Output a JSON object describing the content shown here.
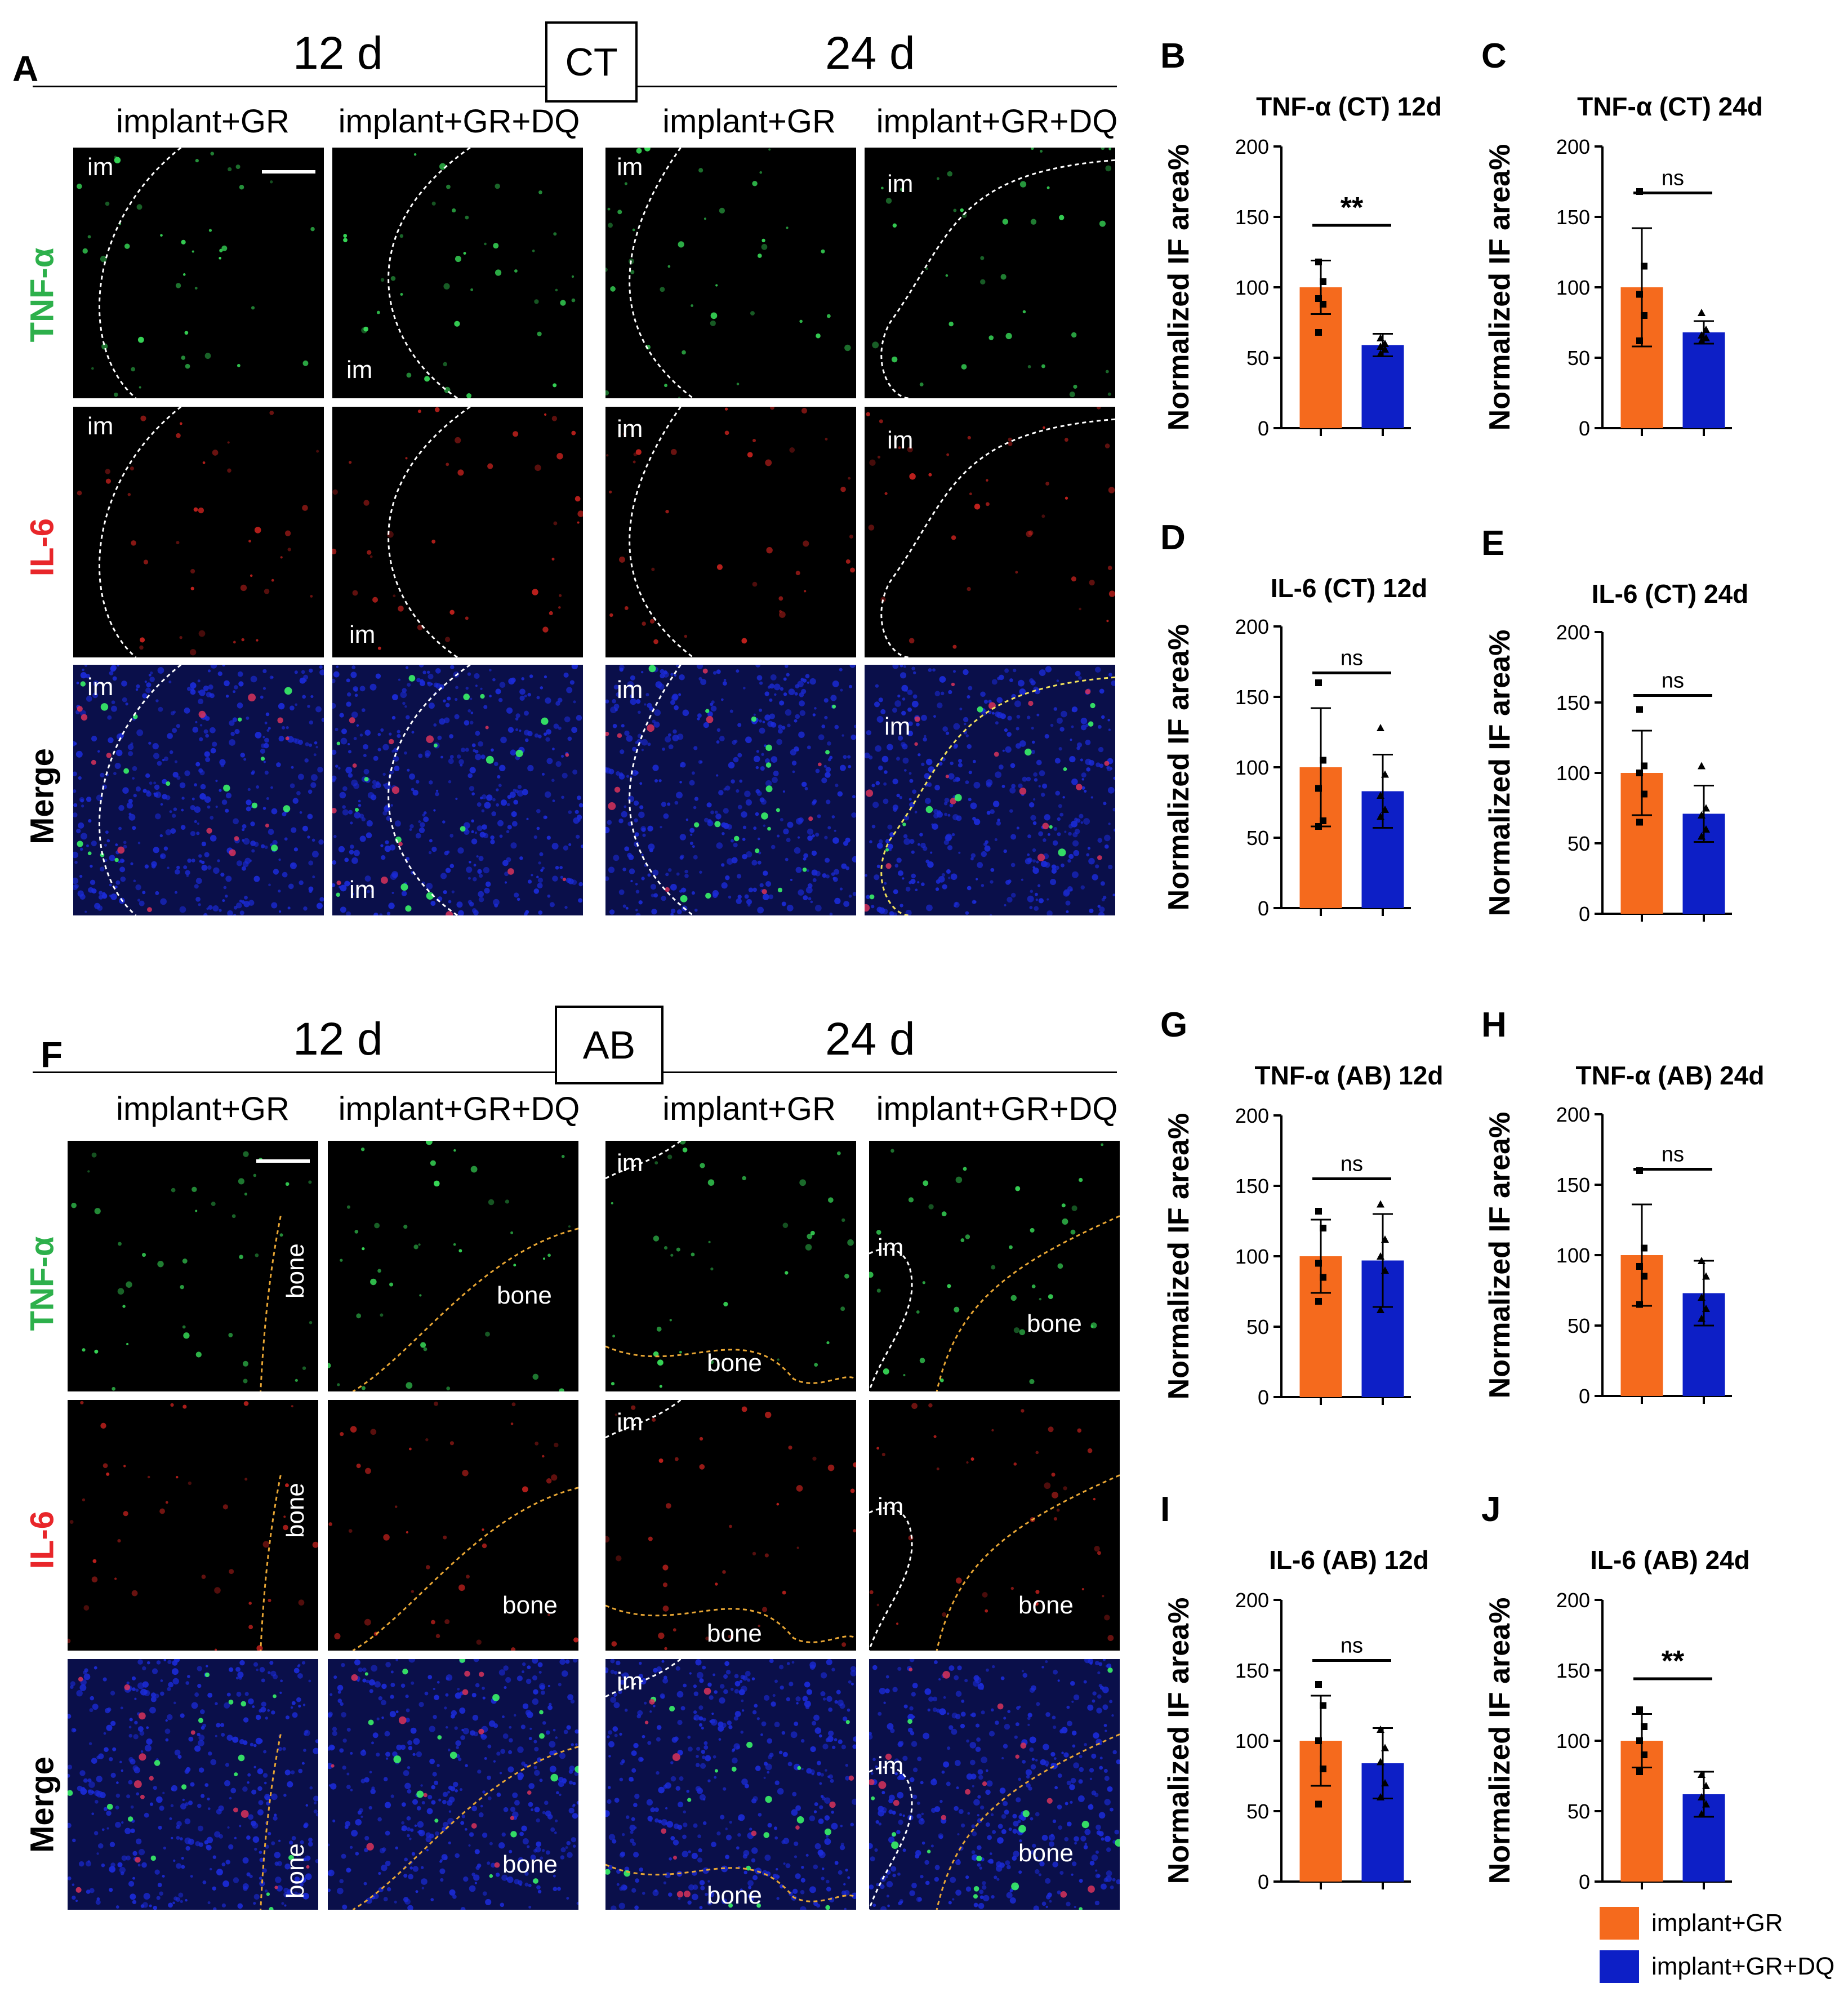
{
  "section_ct": {
    "letter": "A",
    "box_label": "CT",
    "day_left": "12 d",
    "day_right": "24 d"
  },
  "section_ab": {
    "letter": "F",
    "box_label": "AB",
    "day_left": "12 d",
    "day_right": "24 d"
  },
  "column_headers": [
    "implant+GR",
    "implant+GR+DQ",
    "implant+GR",
    "implant+GR+DQ"
  ],
  "rows": {
    "tnf": {
      "label": "TNF-α",
      "color": "#2db04b"
    },
    "il6": {
      "label": "IL-6",
      "color": "#e8262a"
    },
    "merge": {
      "label": "Merge",
      "color": "#000000"
    }
  },
  "ct_panels": {
    "labels": [
      [
        "im",
        "im",
        "im",
        "im"
      ],
      [
        "im",
        "im",
        "im",
        "im"
      ],
      [
        "im",
        "im",
        "im",
        "im"
      ]
    ]
  },
  "ab_panels": {
    "labels": [
      [
        "bone",
        "bone",
        "im",
        "im",
        "bone",
        "bone",
        "im",
        "bone"
      ],
      [
        "bone",
        "bone",
        "im",
        "im",
        "bone",
        "bone"
      ],
      [
        "bone",
        "bone",
        "im",
        "bone",
        "im",
        "bone"
      ]
    ]
  },
  "legend": [
    {
      "label": "implant+GR",
      "color": "#f56a1d"
    },
    {
      "label": "implant+GR+DQ",
      "color": "#0d1fc6"
    }
  ],
  "chart_data": [
    {
      "letter": "B",
      "type": "bar",
      "title": "TNF-α (CT) 12d",
      "ylabel": "Normalized IF area%",
      "ylim": [
        0,
        200
      ],
      "yticks": [
        0,
        50,
        100,
        150,
        200
      ],
      "categories": [
        "implant+GR",
        "implant+GR+DQ"
      ],
      "values": [
        100,
        59
      ],
      "errors": [
        19,
        8
      ],
      "sig": "**",
      "points": [
        [
          118,
          104,
          92,
          88,
          68
        ],
        [
          64,
          60,
          58,
          56,
          53
        ]
      ]
    },
    {
      "letter": "C",
      "type": "bar",
      "title": "TNF-α (CT) 24d",
      "ylabel": "Normalized IF area%",
      "ylim": [
        0,
        200
      ],
      "yticks": [
        0,
        50,
        100,
        150,
        200
      ],
      "categories": [
        "implant+GR",
        "implant+GR+DQ"
      ],
      "values": [
        100,
        68
      ],
      "errors": [
        42,
        8
      ],
      "sig": "ns",
      "points": [
        [
          168,
          115,
          95,
          80,
          62
        ],
        [
          82,
          70,
          66,
          64,
          62
        ]
      ]
    },
    {
      "letter": "D",
      "type": "bar",
      "title": "IL-6 (CT) 12d",
      "ylabel": "Normalized IF area%",
      "ylim": [
        0,
        200
      ],
      "yticks": [
        0,
        50,
        100,
        150,
        200
      ],
      "categories": [
        "implant+GR",
        "implant+GR+DQ"
      ],
      "values": [
        100,
        83
      ],
      "errors": [
        42,
        26
      ],
      "sig": "ns",
      "points": [
        [
          160,
          105,
          85,
          62,
          58
        ],
        [
          128,
          95,
          80,
          70,
          65
        ]
      ]
    },
    {
      "letter": "E",
      "type": "bar",
      "title": "IL-6 (CT) 24d",
      "ylabel": "Normalized IF area%",
      "ylim": [
        0,
        200
      ],
      "yticks": [
        0,
        50,
        100,
        150,
        200
      ],
      "categories": [
        "implant+GR",
        "implant+GR+DQ"
      ],
      "values": [
        100,
        71
      ],
      "errors": [
        30,
        20
      ],
      "sig": "ns",
      "points": [
        [
          145,
          105,
          100,
          85,
          65
        ],
        [
          105,
          75,
          70,
          60,
          55
        ]
      ]
    },
    {
      "letter": "G",
      "type": "bar",
      "title": "TNF-α (AB) 12d",
      "ylabel": "Normalized IF area%",
      "ylim": [
        0,
        200
      ],
      "yticks": [
        0,
        50,
        100,
        150,
        200
      ],
      "categories": [
        "implant+GR",
        "implant+GR+DQ"
      ],
      "values": [
        100,
        97
      ],
      "errors": [
        26,
        33
      ],
      "sig": "ns",
      "points": [
        [
          132,
          120,
          95,
          85,
          68
        ],
        [
          137,
          112,
          100,
          90,
          62
        ]
      ]
    },
    {
      "letter": "H",
      "type": "bar",
      "title": "TNF-α (AB) 24d",
      "ylabel": "Normalized IF area%",
      "ylim": [
        0,
        200
      ],
      "yticks": [
        0,
        50,
        100,
        150,
        200
      ],
      "categories": [
        "implant+GR",
        "implant+GR+DQ"
      ],
      "values": [
        100,
        73
      ],
      "errors": [
        36,
        23
      ],
      "sig": "ns",
      "points": [
        [
          160,
          105,
          92,
          85,
          65
        ],
        [
          96,
          85,
          70,
          62,
          55
        ]
      ]
    },
    {
      "letter": "I",
      "type": "bar",
      "title": "IL-6 (AB) 12d",
      "ylabel": "Normalized IF area%",
      "ylim": [
        0,
        200
      ],
      "yticks": [
        0,
        50,
        100,
        150,
        200
      ],
      "categories": [
        "implant+GR",
        "implant+GR+DQ"
      ],
      "values": [
        100,
        84
      ],
      "errors": [
        32,
        25
      ],
      "sig": "ns",
      "points": [
        [
          140,
          125,
          100,
          80,
          55
        ],
        [
          108,
          95,
          85,
          70,
          60
        ]
      ]
    },
    {
      "letter": "J",
      "type": "bar",
      "title": "IL-6 (AB) 24d",
      "ylabel": "Normalized IF area%",
      "ylim": [
        0,
        200
      ],
      "yticks": [
        0,
        50,
        100,
        150,
        200
      ],
      "categories": [
        "implant+GR",
        "implant+GR+DQ"
      ],
      "values": [
        100,
        62
      ],
      "errors": [
        19,
        16
      ],
      "sig": "**",
      "points": [
        [
          122,
          110,
          100,
          90,
          78
        ],
        [
          76,
          68,
          60,
          55,
          48
        ]
      ]
    }
  ]
}
